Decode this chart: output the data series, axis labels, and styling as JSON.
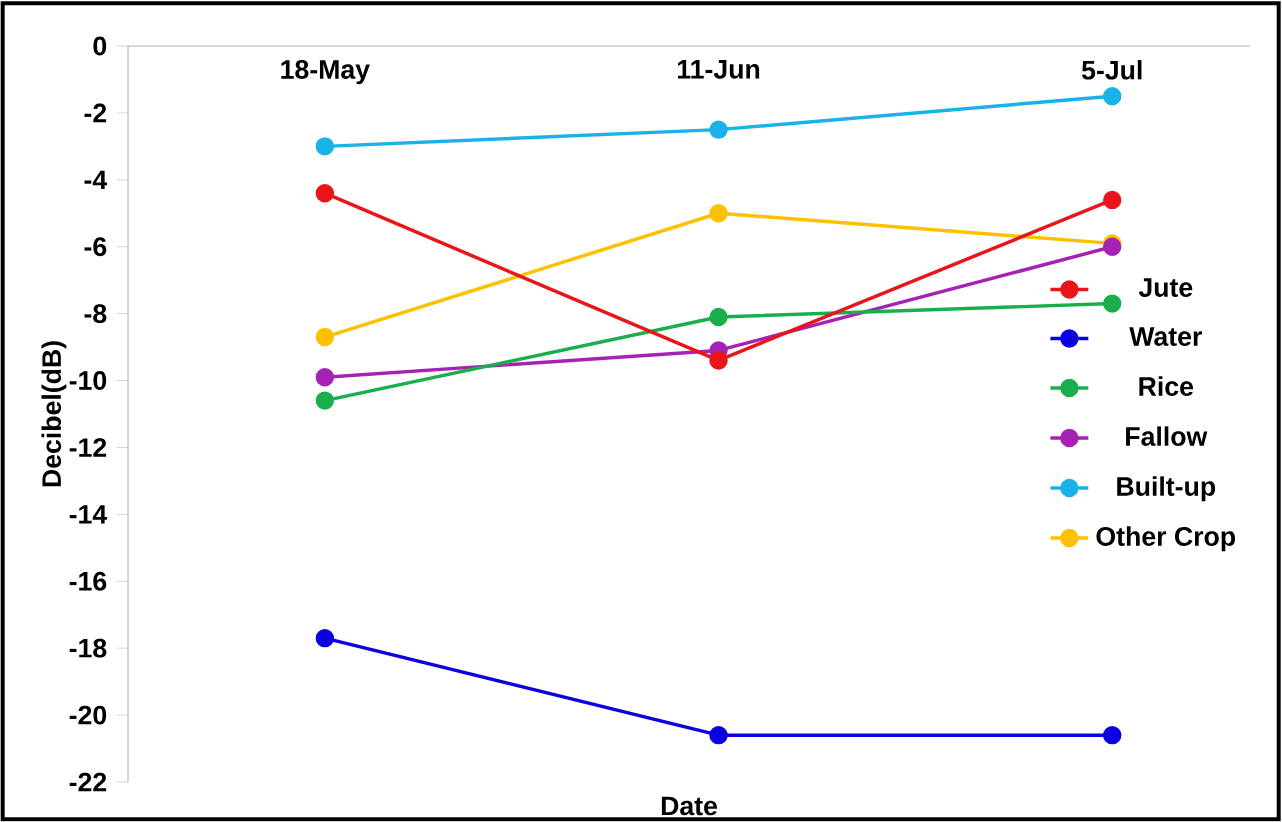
{
  "chart_data": {
    "type": "line",
    "xlabel": "Date",
    "ylabel": "Decibel(dB)",
    "categories": [
      "18-May",
      "11-Jun",
      "5-Jul"
    ],
    "series": [
      {
        "name": "Jute",
        "color": "#e8161b",
        "values": [
          -4.4,
          -9.4,
          -4.6
        ]
      },
      {
        "name": "Water",
        "color": "#0a00e0",
        "values": [
          -17.7,
          -20.6,
          -20.6
        ]
      },
      {
        "name": "Rice",
        "color": "#1aae4c",
        "values": [
          -10.6,
          -8.1,
          -7.7
        ]
      },
      {
        "name": "Fallow",
        "color": "#a622b4",
        "values": [
          -9.9,
          -9.1,
          -6.0
        ]
      },
      {
        "name": "Built-up",
        "color": "#1ab2e8",
        "values": [
          -3.0,
          -2.5,
          -1.5
        ]
      },
      {
        "name": "Other Crop",
        "color": "#ffc000",
        "values": [
          -8.7,
          -5.0,
          -5.9
        ]
      }
    ],
    "ylim": [
      -22,
      0
    ],
    "yticks": [
      -22,
      -20,
      -18,
      -16,
      -14,
      -12,
      -10,
      -8,
      -6,
      -4,
      -2,
      0
    ],
    "legend": "right",
    "marker": "circle",
    "line_style": "solid"
  }
}
